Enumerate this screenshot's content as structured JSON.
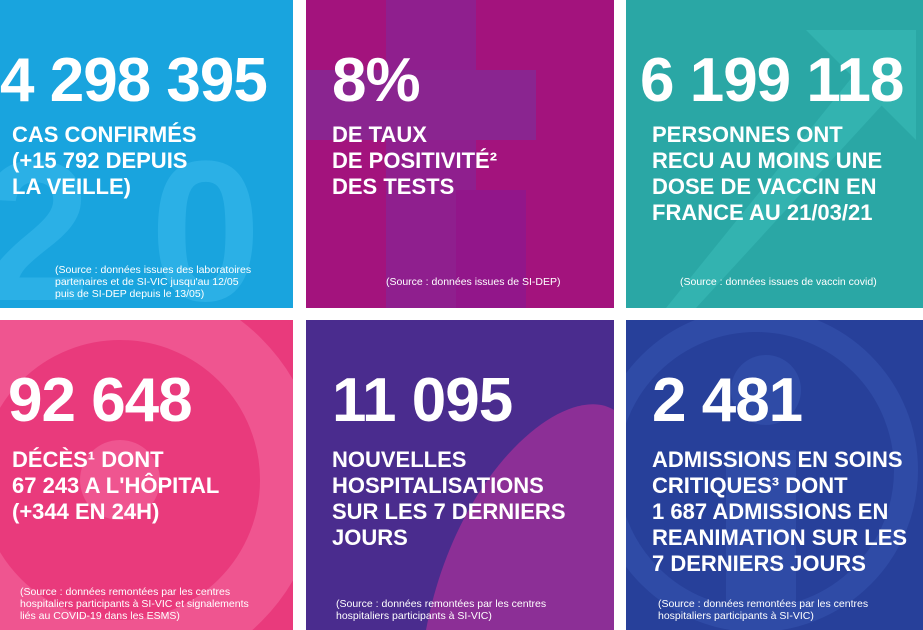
{
  "tiles": [
    {
      "figure": "4 298 395",
      "label": [
        "CAS CONFIRMÉS",
        "(+15 792 DEPUIS",
        "LA VEILLE)"
      ],
      "source": [
        "(Source : données issues des laboratoires",
        "partenaires et de SI-VIC jusqu'au 12/05",
        "puis de SI-DEP depuis le 13/05)"
      ]
    },
    {
      "figure": "8%",
      "label": [
        "DE TAUX",
        "DE POSITIVITÉ²",
        "DES TESTS"
      ],
      "source": [
        "(Source : données issues de SI-DEP)"
      ]
    },
    {
      "figure": "6 199 118",
      "label": [
        "PERSONNES ONT",
        "RECU AU MOINS UNE",
        "DOSE DE VACCIN EN",
        "FRANCE AU 21/03/21"
      ],
      "source": [
        "(Source : données issues de vaccin covid)"
      ]
    },
    {
      "figure": "92 648",
      "label": [
        "DÉCÈS¹ DONT",
        "67 243 A L'HÔPITAL",
        "(+344 EN 24H)"
      ],
      "source": [
        "(Source : données remontées par les centres",
        "hospitaliers participants à SI-VIC et signalements",
        "liés au COVID-19 dans les ESMS)"
      ]
    },
    {
      "figure": "11 095",
      "label": [
        "NOUVELLES",
        "HOSPITALISATIONS",
        "SUR LES 7 DERNIERS",
        "JOURS"
      ],
      "source": [
        "(Source : données remontées par les centres",
        "hospitaliers participants à SI-VIC)"
      ]
    },
    {
      "figure": "2 481",
      "label": [
        "ADMISSIONS EN SOINS",
        "CRITIQUES³ DONT",
        "1 687 ADMISSIONS EN",
        "REANIMATION SUR LES",
        "7 DERNIERS JOURS"
      ],
      "source": [
        "(Source : données remontées par les centres",
        "hospitaliers participants à SI-VIC)"
      ]
    }
  ]
}
